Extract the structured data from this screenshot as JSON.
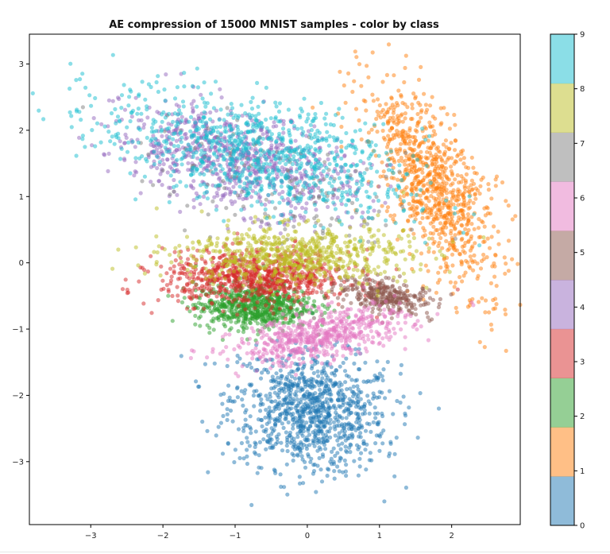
{
  "chart_data": {
    "type": "scatter",
    "title": "AE compression of 15000 MNIST samples - color by class",
    "xlabel": "",
    "ylabel": "",
    "xlim": [
      -3.85,
      2.95
    ],
    "ylim": [
      -3.95,
      3.45
    ],
    "x_ticks": [
      -3,
      -2,
      -1,
      0,
      1,
      2
    ],
    "x_tick_labels": [
      "−3",
      "−2",
      "−1",
      "0",
      "1",
      "2"
    ],
    "y_ticks": [
      -3,
      -2,
      -1,
      0,
      1,
      2,
      3
    ],
    "y_tick_labels": [
      "−3",
      "−2",
      "−1",
      "0",
      "1",
      "2",
      "3"
    ],
    "grid": false,
    "n_samples": 15000,
    "point_alpha": 0.5,
    "colormap": "tab10",
    "colorbar": {
      "range": [
        0,
        9
      ],
      "ticks": [
        0,
        1,
        2,
        3,
        4,
        5,
        6,
        7,
        8,
        9
      ],
      "tick_labels": [
        "0",
        "1",
        "2",
        "3",
        "4",
        "5",
        "6",
        "7",
        "8",
        "9"
      ],
      "colors": [
        "#1f77b4",
        "#ff7f0e",
        "#2ca02c",
        "#d62728",
        "#9467bd",
        "#8c564b",
        "#e377c2",
        "#7f7f7f",
        "#bcbd22",
        "#17becf"
      ]
    },
    "series": [
      {
        "name": "0",
        "color": "#1f77b4",
        "n_drawn": 1000,
        "center": [
          0.05,
          -2.25
        ],
        "spread": [
          0.55,
          0.45
        ],
        "rotation_deg": -10
      },
      {
        "name": "1",
        "color": "#ff7f0e",
        "n_drawn": 900,
        "center": [
          1.75,
          1.15
        ],
        "spread": [
          0.3,
          0.85
        ],
        "rotation_deg": 25
      },
      {
        "name": "2",
        "color": "#2ca02c",
        "n_drawn": 700,
        "center": [
          -0.75,
          -0.65
        ],
        "spread": [
          0.4,
          0.17
        ],
        "rotation_deg": 0
      },
      {
        "name": "3",
        "color": "#d62728",
        "n_drawn": 800,
        "center": [
          -0.7,
          -0.22
        ],
        "spread": [
          0.65,
          0.2
        ],
        "rotation_deg": 0
      },
      {
        "name": "4",
        "color": "#9467bd",
        "n_drawn": 800,
        "center": [
          -1.0,
          1.55
        ],
        "spread": [
          0.85,
          0.35
        ],
        "rotation_deg": -15
      },
      {
        "name": "5",
        "color": "#8c564b",
        "n_drawn": 300,
        "center": [
          1.1,
          -0.5
        ],
        "spread": [
          0.35,
          0.12
        ],
        "rotation_deg": -12
      },
      {
        "name": "6",
        "color": "#e377c2",
        "n_drawn": 600,
        "center": [
          0.2,
          -1.1
        ],
        "spread": [
          0.6,
          0.18
        ],
        "rotation_deg": 12
      },
      {
        "name": "7",
        "color": "#7f7f7f",
        "n_drawn": 150,
        "center": [
          -0.3,
          1.1
        ],
        "spread": [
          1.0,
          0.4
        ],
        "rotation_deg": -15
      },
      {
        "name": "8",
        "color": "#bcbd22",
        "n_drawn": 700,
        "center": [
          -0.2,
          0.12
        ],
        "spread": [
          0.8,
          0.22
        ],
        "rotation_deg": 0
      },
      {
        "name": "9",
        "color": "#17becf",
        "n_drawn": 900,
        "center": [
          -0.7,
          1.65
        ],
        "spread": [
          1.1,
          0.4
        ],
        "rotation_deg": -15
      }
    ]
  }
}
